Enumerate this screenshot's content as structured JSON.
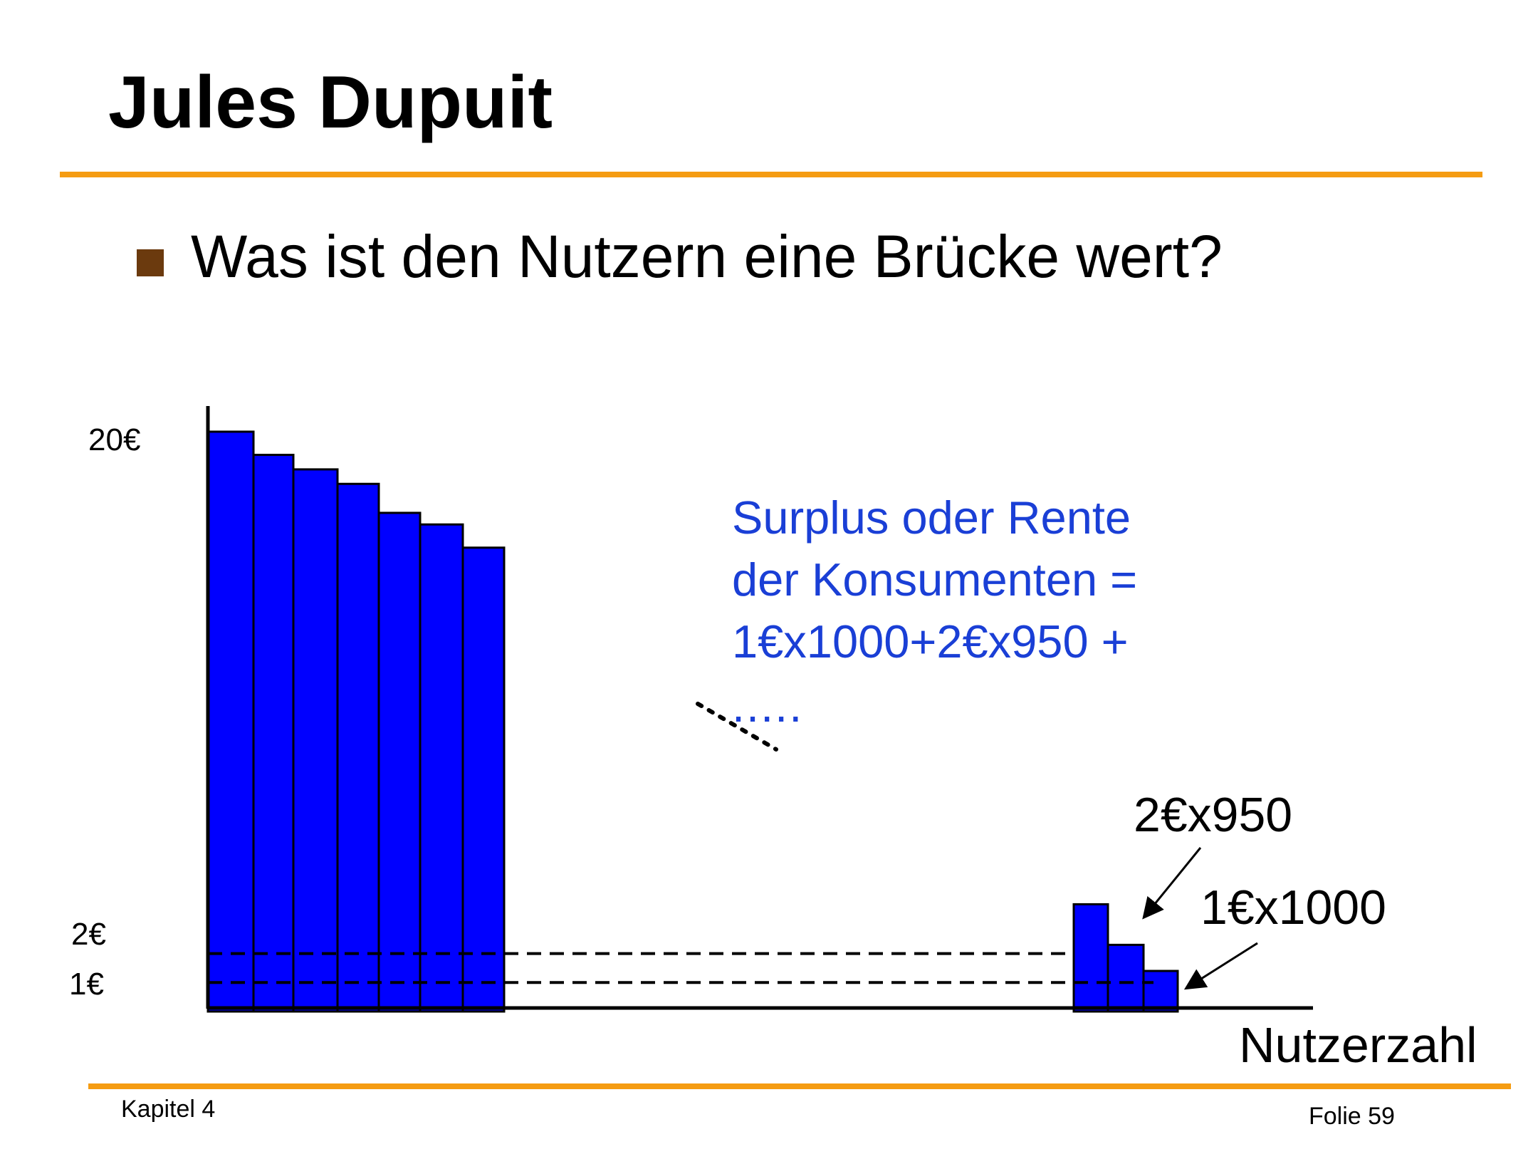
{
  "slide": {
    "title": "Jules Dupuit",
    "bullet": "Was ist den Nutzern eine Brücke wert?",
    "footer_left": "Kapitel 4",
    "footer_right": "Folie 59"
  },
  "colors": {
    "accent_rule": "#f59c12",
    "bullet_marker": "#6b3a0e",
    "bar_fill": "#0000ff",
    "annotation_text": "#1a3fd6"
  },
  "chart_data": {
    "type": "bar",
    "ylabel": "",
    "xlabel": "Nutzerzahl",
    "y_tick_labels": [
      "20€",
      "2€",
      "1€"
    ],
    "y_ticks": [
      20,
      2,
      1
    ],
    "bars_left_group": [
      20,
      19.2,
      18.7,
      18.2,
      17.2,
      16.8,
      16
    ],
    "bars_right_group": [
      3.7,
      2.3,
      1.4
    ],
    "reference_lines": [
      2,
      1
    ],
    "annotations": {
      "surplus_lines": [
        "Surplus oder Rente",
        "der Konsumenten =",
        "1€x1000+2€x950 +",
        "....."
      ],
      "label_950": "2€x950",
      "label_1000": "1€x1000"
    }
  }
}
